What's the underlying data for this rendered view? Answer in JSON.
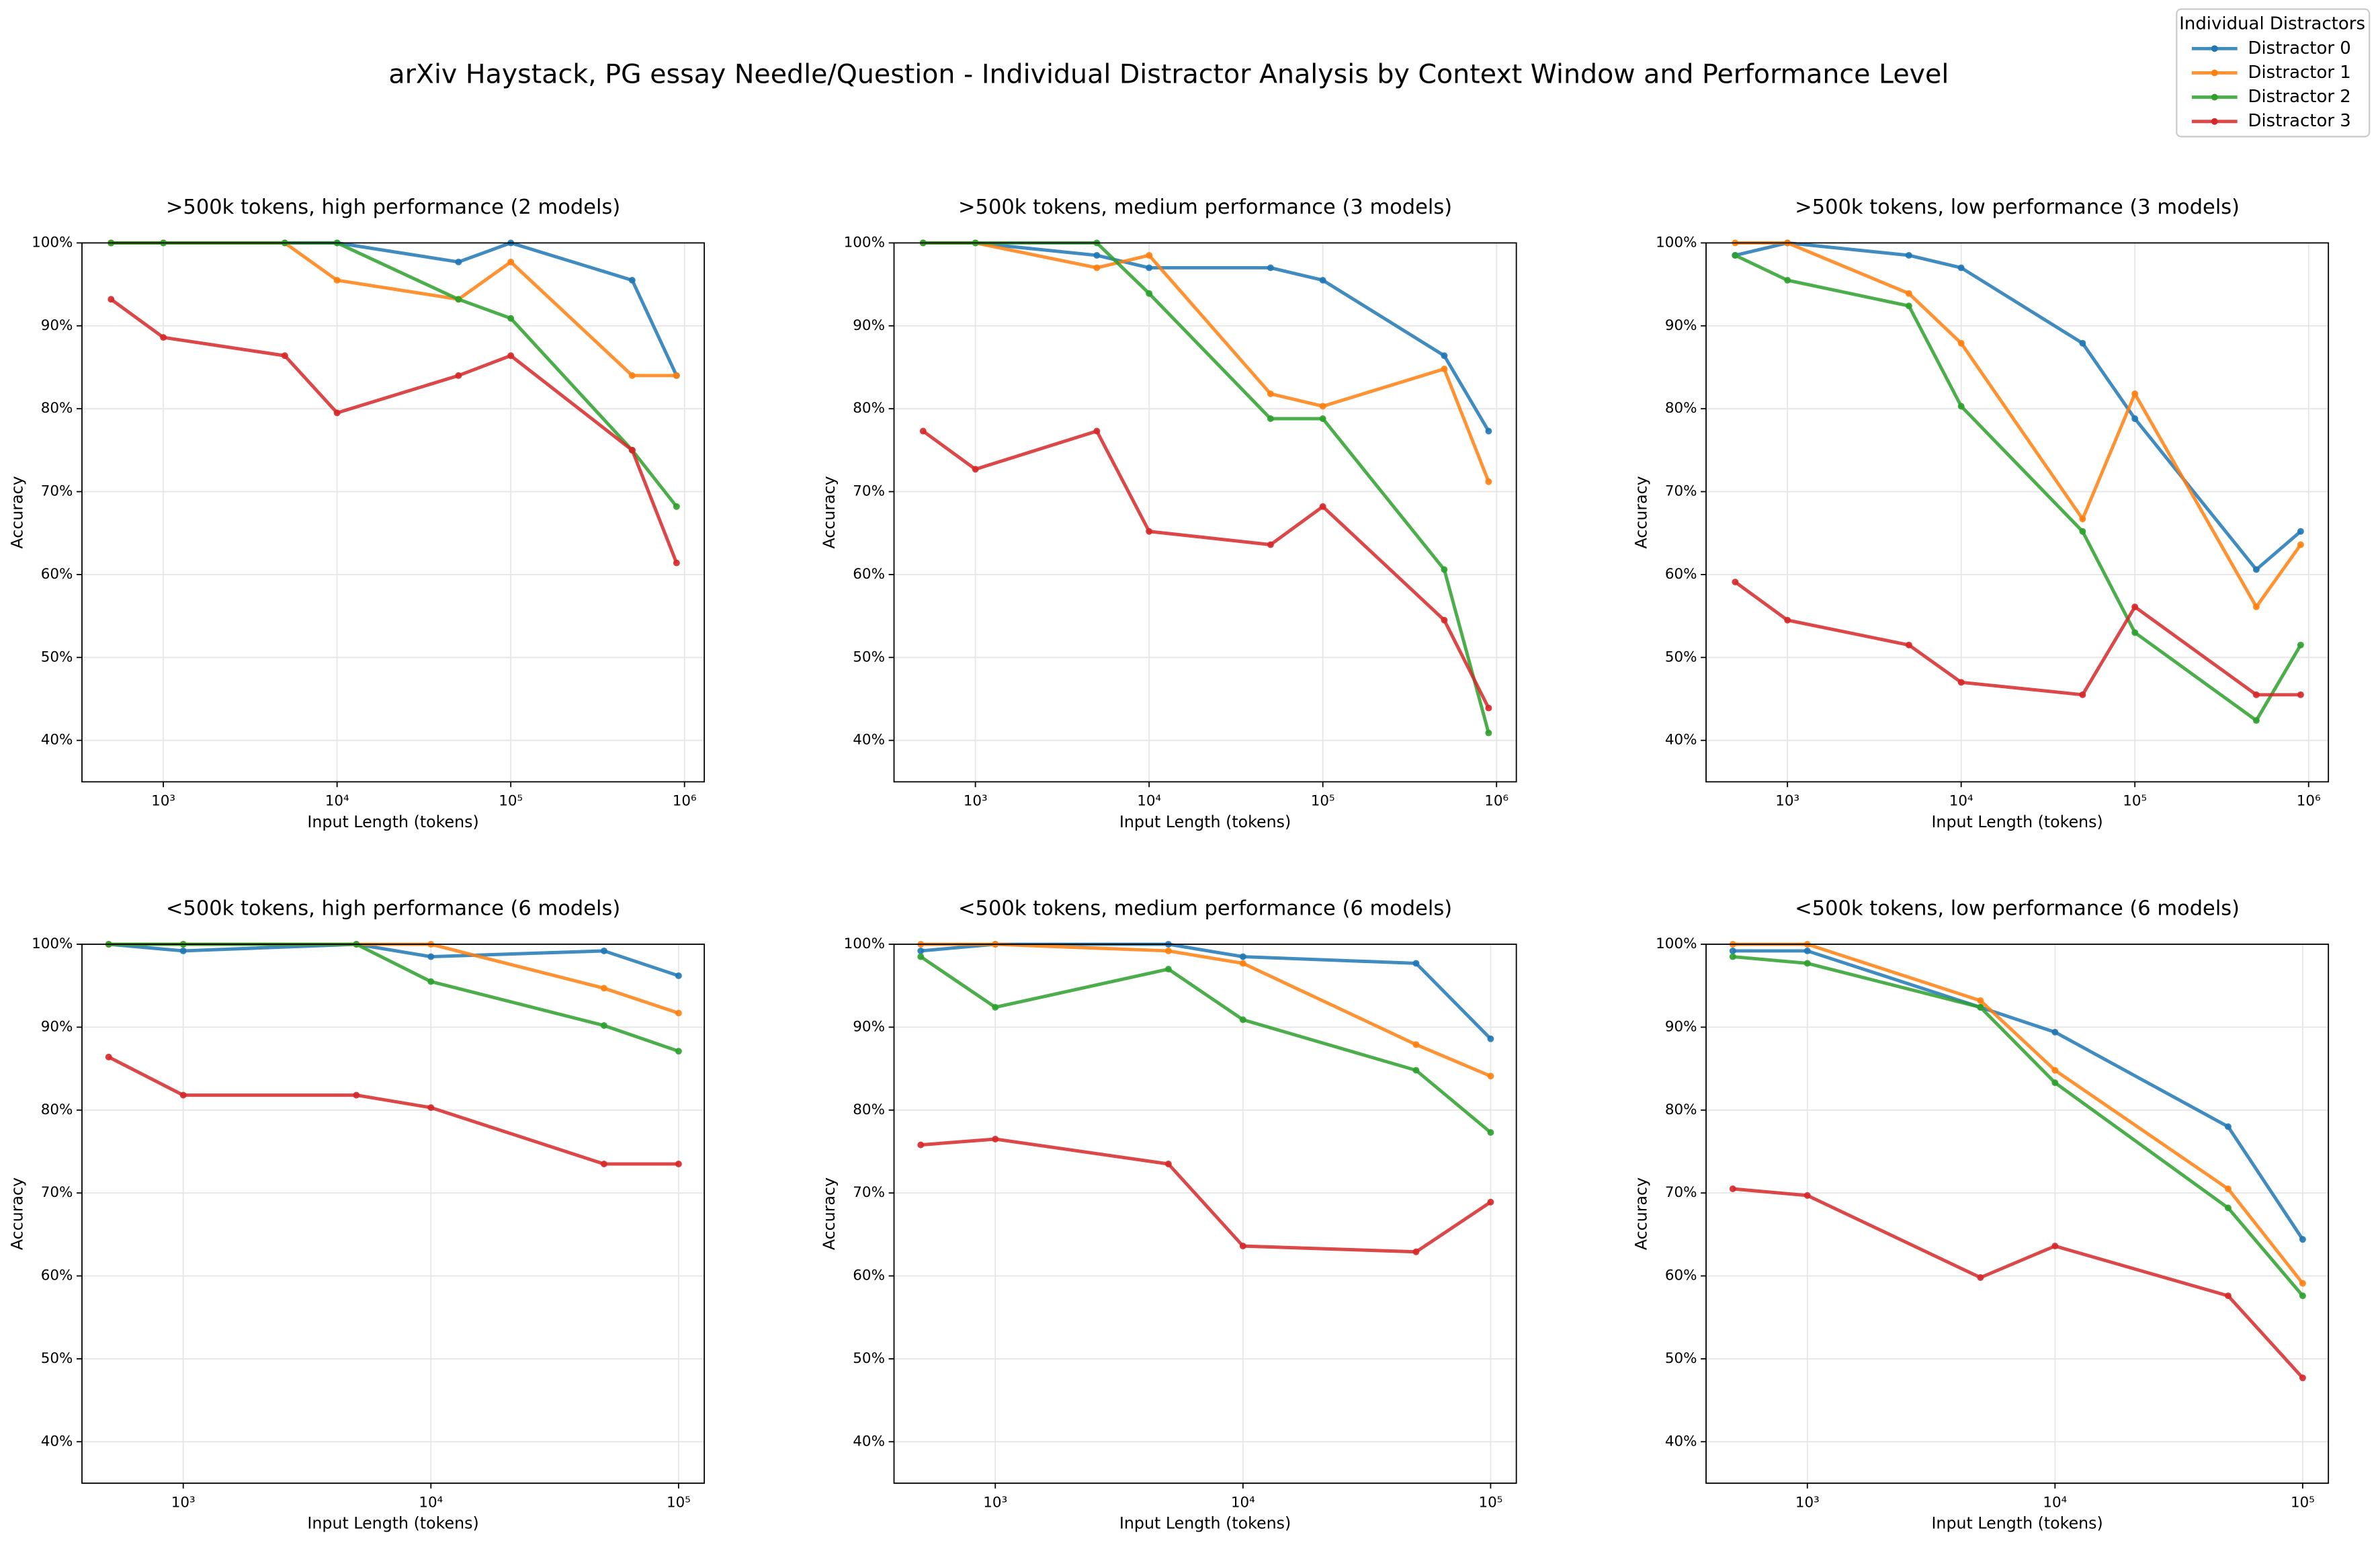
{
  "title": "arXiv Haystack, PG essay Needle/Question - Individual Distractor Analysis by Context Window and Performance Level",
  "legend_title": "Individual Distractors",
  "chart_data": [
    {
      "type": "line",
      "title": ">500k tokens, high performance (2 models)",
      "xlabel": "Input Length (tokens)",
      "ylabel": "Accuracy",
      "xscale": "log",
      "grid": true,
      "x": [
        500,
        1000,
        5000,
        10000,
        50000,
        100000,
        500000,
        900000
      ],
      "xlim": [
        340,
        1300000
      ],
      "xticks": [
        {
          "value": 1000,
          "label": "10³"
        },
        {
          "value": 10000,
          "label": "10⁴"
        },
        {
          "value": 100000,
          "label": "10⁵"
        },
        {
          "value": 1000000,
          "label": "10⁶"
        }
      ],
      "ylim": [
        35,
        100
      ],
      "yticks": [
        {
          "value": 40,
          "label": "40%"
        },
        {
          "value": 50,
          "label": "50%"
        },
        {
          "value": 60,
          "label": "60%"
        },
        {
          "value": 70,
          "label": "70%"
        },
        {
          "value": 80,
          "label": "80%"
        },
        {
          "value": 90,
          "label": "90%"
        },
        {
          "value": 100,
          "label": "100%"
        }
      ],
      "series": [
        {
          "name": "Distractor 0",
          "color": "#1f77b4",
          "values": [
            100,
            100,
            100,
            100,
            97.7,
            100,
            95.5,
            84
          ]
        },
        {
          "name": "Distractor 1",
          "color": "#ff7f0e",
          "values": [
            100,
            100,
            100,
            95.5,
            93.2,
            97.7,
            84,
            84
          ]
        },
        {
          "name": "Distractor 2",
          "color": "#2ca02c",
          "values": [
            100,
            100,
            100,
            100,
            93.2,
            90.9,
            75,
            68.2
          ]
        },
        {
          "name": "Distractor 3",
          "color": "#d62728",
          "values": [
            93.2,
            88.6,
            86.4,
            79.5,
            84,
            86.4,
            75,
            61.4
          ]
        }
      ]
    },
    {
      "type": "line",
      "title": ">500k tokens, medium performance (3 models)",
      "xlabel": "Input Length (tokens)",
      "ylabel": "Accuracy",
      "xscale": "log",
      "grid": true,
      "x": [
        500,
        1000,
        5000,
        10000,
        50000,
        100000,
        500000,
        900000
      ],
      "xlim": [
        340,
        1300000
      ],
      "xticks": [
        {
          "value": 1000,
          "label": "10³"
        },
        {
          "value": 10000,
          "label": "10⁴"
        },
        {
          "value": 100000,
          "label": "10⁵"
        },
        {
          "value": 1000000,
          "label": "10⁶"
        }
      ],
      "ylim": [
        35,
        100
      ],
      "yticks": [
        {
          "value": 40,
          "label": "40%"
        },
        {
          "value": 50,
          "label": "50%"
        },
        {
          "value": 60,
          "label": "60%"
        },
        {
          "value": 70,
          "label": "70%"
        },
        {
          "value": 80,
          "label": "80%"
        },
        {
          "value": 90,
          "label": "90%"
        },
        {
          "value": 100,
          "label": "100%"
        }
      ],
      "series": [
        {
          "name": "Distractor 0",
          "color": "#1f77b4",
          "values": [
            100,
            100,
            98.5,
            97,
            97,
            95.5,
            86.4,
            77.3
          ]
        },
        {
          "name": "Distractor 1",
          "color": "#ff7f0e",
          "values": [
            100,
            100,
            97,
            98.5,
            81.8,
            80.3,
            84.8,
            71.2
          ]
        },
        {
          "name": "Distractor 2",
          "color": "#2ca02c",
          "values": [
            100,
            100,
            100,
            93.9,
            78.8,
            78.8,
            60.6,
            40.9
          ]
        },
        {
          "name": "Distractor 3",
          "color": "#d62728",
          "values": [
            77.3,
            72.7,
            77.3,
            65.2,
            63.6,
            68.2,
            54.5,
            43.9
          ]
        }
      ]
    },
    {
      "type": "line",
      "title": ">500k tokens, low performance (3 models)",
      "xlabel": "Input Length (tokens)",
      "ylabel": "Accuracy",
      "xscale": "log",
      "grid": true,
      "x": [
        500,
        1000,
        5000,
        10000,
        50000,
        100000,
        500000,
        900000
      ],
      "xlim": [
        340,
        1300000
      ],
      "xticks": [
        {
          "value": 1000,
          "label": "10³"
        },
        {
          "value": 10000,
          "label": "10⁴"
        },
        {
          "value": 100000,
          "label": "10⁵"
        },
        {
          "value": 1000000,
          "label": "10⁶"
        }
      ],
      "ylim": [
        35,
        100
      ],
      "yticks": [
        {
          "value": 40,
          "label": "40%"
        },
        {
          "value": 50,
          "label": "50%"
        },
        {
          "value": 60,
          "label": "60%"
        },
        {
          "value": 70,
          "label": "70%"
        },
        {
          "value": 80,
          "label": "80%"
        },
        {
          "value": 90,
          "label": "90%"
        },
        {
          "value": 100,
          "label": "100%"
        }
      ],
      "series": [
        {
          "name": "Distractor 0",
          "color": "#1f77b4",
          "values": [
            98.5,
            100,
            98.5,
            97,
            87.9,
            78.8,
            60.6,
            65.2
          ]
        },
        {
          "name": "Distractor 1",
          "color": "#ff7f0e",
          "values": [
            100,
            100,
            93.9,
            87.9,
            66.7,
            81.8,
            56.1,
            63.6
          ]
        },
        {
          "name": "Distractor 2",
          "color": "#2ca02c",
          "values": [
            98.5,
            95.5,
            92.4,
            80.3,
            65.2,
            53,
            42.4,
            51.5
          ]
        },
        {
          "name": "Distractor 3",
          "color": "#d62728",
          "values": [
            59.1,
            54.5,
            51.5,
            47,
            45.5,
            56.1,
            45.5,
            45.5
          ]
        }
      ]
    },
    {
      "type": "line",
      "title": "<500k tokens, high performance (6 models)",
      "xlabel": "Input Length (tokens)",
      "ylabel": "Accuracy",
      "xscale": "log",
      "grid": true,
      "x": [
        500,
        1000,
        5000,
        10000,
        50000,
        100000
      ],
      "xlim": [
        390,
        127000
      ],
      "xticks": [
        {
          "value": 1000,
          "label": "10³"
        },
        {
          "value": 10000,
          "label": "10⁴"
        },
        {
          "value": 100000,
          "label": "10⁵"
        }
      ],
      "ylim": [
        35,
        100
      ],
      "yticks": [
        {
          "value": 40,
          "label": "40%"
        },
        {
          "value": 50,
          "label": "50%"
        },
        {
          "value": 60,
          "label": "60%"
        },
        {
          "value": 70,
          "label": "70%"
        },
        {
          "value": 80,
          "label": "80%"
        },
        {
          "value": 90,
          "label": "90%"
        },
        {
          "value": 100,
          "label": "100%"
        }
      ],
      "series": [
        {
          "name": "Distractor 0",
          "color": "#1f77b4",
          "values": [
            100,
            99.2,
            100,
            98.5,
            99.2,
            96.2
          ]
        },
        {
          "name": "Distractor 1",
          "color": "#ff7f0e",
          "values": [
            100,
            100,
            100,
            100,
            94.7,
            91.7
          ]
        },
        {
          "name": "Distractor 2",
          "color": "#2ca02c",
          "values": [
            100,
            100,
            100,
            95.5,
            90.2,
            87.1
          ]
        },
        {
          "name": "Distractor 3",
          "color": "#d62728",
          "values": [
            86.4,
            81.8,
            81.8,
            80.3,
            73.5,
            73.5
          ]
        }
      ]
    },
    {
      "type": "line",
      "title": "<500k tokens, medium performance (6 models)",
      "xlabel": "Input Length (tokens)",
      "ylabel": "Accuracy",
      "xscale": "log",
      "grid": true,
      "x": [
        500,
        1000,
        5000,
        10000,
        50000,
        100000
      ],
      "xlim": [
        390,
        127000
      ],
      "xticks": [
        {
          "value": 1000,
          "label": "10³"
        },
        {
          "value": 10000,
          "label": "10⁴"
        },
        {
          "value": 100000,
          "label": "10⁵"
        }
      ],
      "ylim": [
        35,
        100
      ],
      "yticks": [
        {
          "value": 40,
          "label": "40%"
        },
        {
          "value": 50,
          "label": "50%"
        },
        {
          "value": 60,
          "label": "60%"
        },
        {
          "value": 70,
          "label": "70%"
        },
        {
          "value": 80,
          "label": "80%"
        },
        {
          "value": 90,
          "label": "90%"
        },
        {
          "value": 100,
          "label": "100%"
        }
      ],
      "series": [
        {
          "name": "Distractor 0",
          "color": "#1f77b4",
          "values": [
            99.2,
            100,
            100,
            98.5,
            97.7,
            88.6
          ]
        },
        {
          "name": "Distractor 1",
          "color": "#ff7f0e",
          "values": [
            100,
            100,
            99.2,
            97.7,
            87.9,
            84.1
          ]
        },
        {
          "name": "Distractor 2",
          "color": "#2ca02c",
          "values": [
            98.5,
            92.4,
            97,
            90.9,
            84.8,
            77.3
          ]
        },
        {
          "name": "Distractor 3",
          "color": "#d62728",
          "values": [
            75.8,
            76.5,
            73.5,
            63.6,
            62.9,
            68.9
          ]
        }
      ]
    },
    {
      "type": "line",
      "title": "<500k tokens, low performance (6 models)",
      "xlabel": "Input Length (tokens)",
      "ylabel": "Accuracy",
      "xscale": "log",
      "grid": true,
      "x": [
        500,
        1000,
        5000,
        10000,
        50000,
        100000
      ],
      "xlim": [
        390,
        127000
      ],
      "xticks": [
        {
          "value": 1000,
          "label": "10³"
        },
        {
          "value": 10000,
          "label": "10⁴"
        },
        {
          "value": 100000,
          "label": "10⁵"
        }
      ],
      "ylim": [
        35,
        100
      ],
      "yticks": [
        {
          "value": 40,
          "label": "40%"
        },
        {
          "value": 50,
          "label": "50%"
        },
        {
          "value": 60,
          "label": "60%"
        },
        {
          "value": 70,
          "label": "70%"
        },
        {
          "value": 80,
          "label": "80%"
        },
        {
          "value": 90,
          "label": "90%"
        },
        {
          "value": 100,
          "label": "100%"
        }
      ],
      "series": [
        {
          "name": "Distractor 0",
          "color": "#1f77b4",
          "values": [
            99.2,
            99.2,
            92.4,
            89.4,
            78,
            64.4
          ]
        },
        {
          "name": "Distractor 1",
          "color": "#ff7f0e",
          "values": [
            100,
            100,
            93.2,
            84.8,
            70.5,
            59.1
          ]
        },
        {
          "name": "Distractor 2",
          "color": "#2ca02c",
          "values": [
            98.5,
            97.7,
            92.4,
            83.3,
            68.2,
            57.6
          ]
        },
        {
          "name": "Distractor 3",
          "color": "#d62728",
          "values": [
            70.5,
            69.7,
            59.8,
            63.6,
            57.6,
            47.7
          ]
        }
      ]
    }
  ]
}
